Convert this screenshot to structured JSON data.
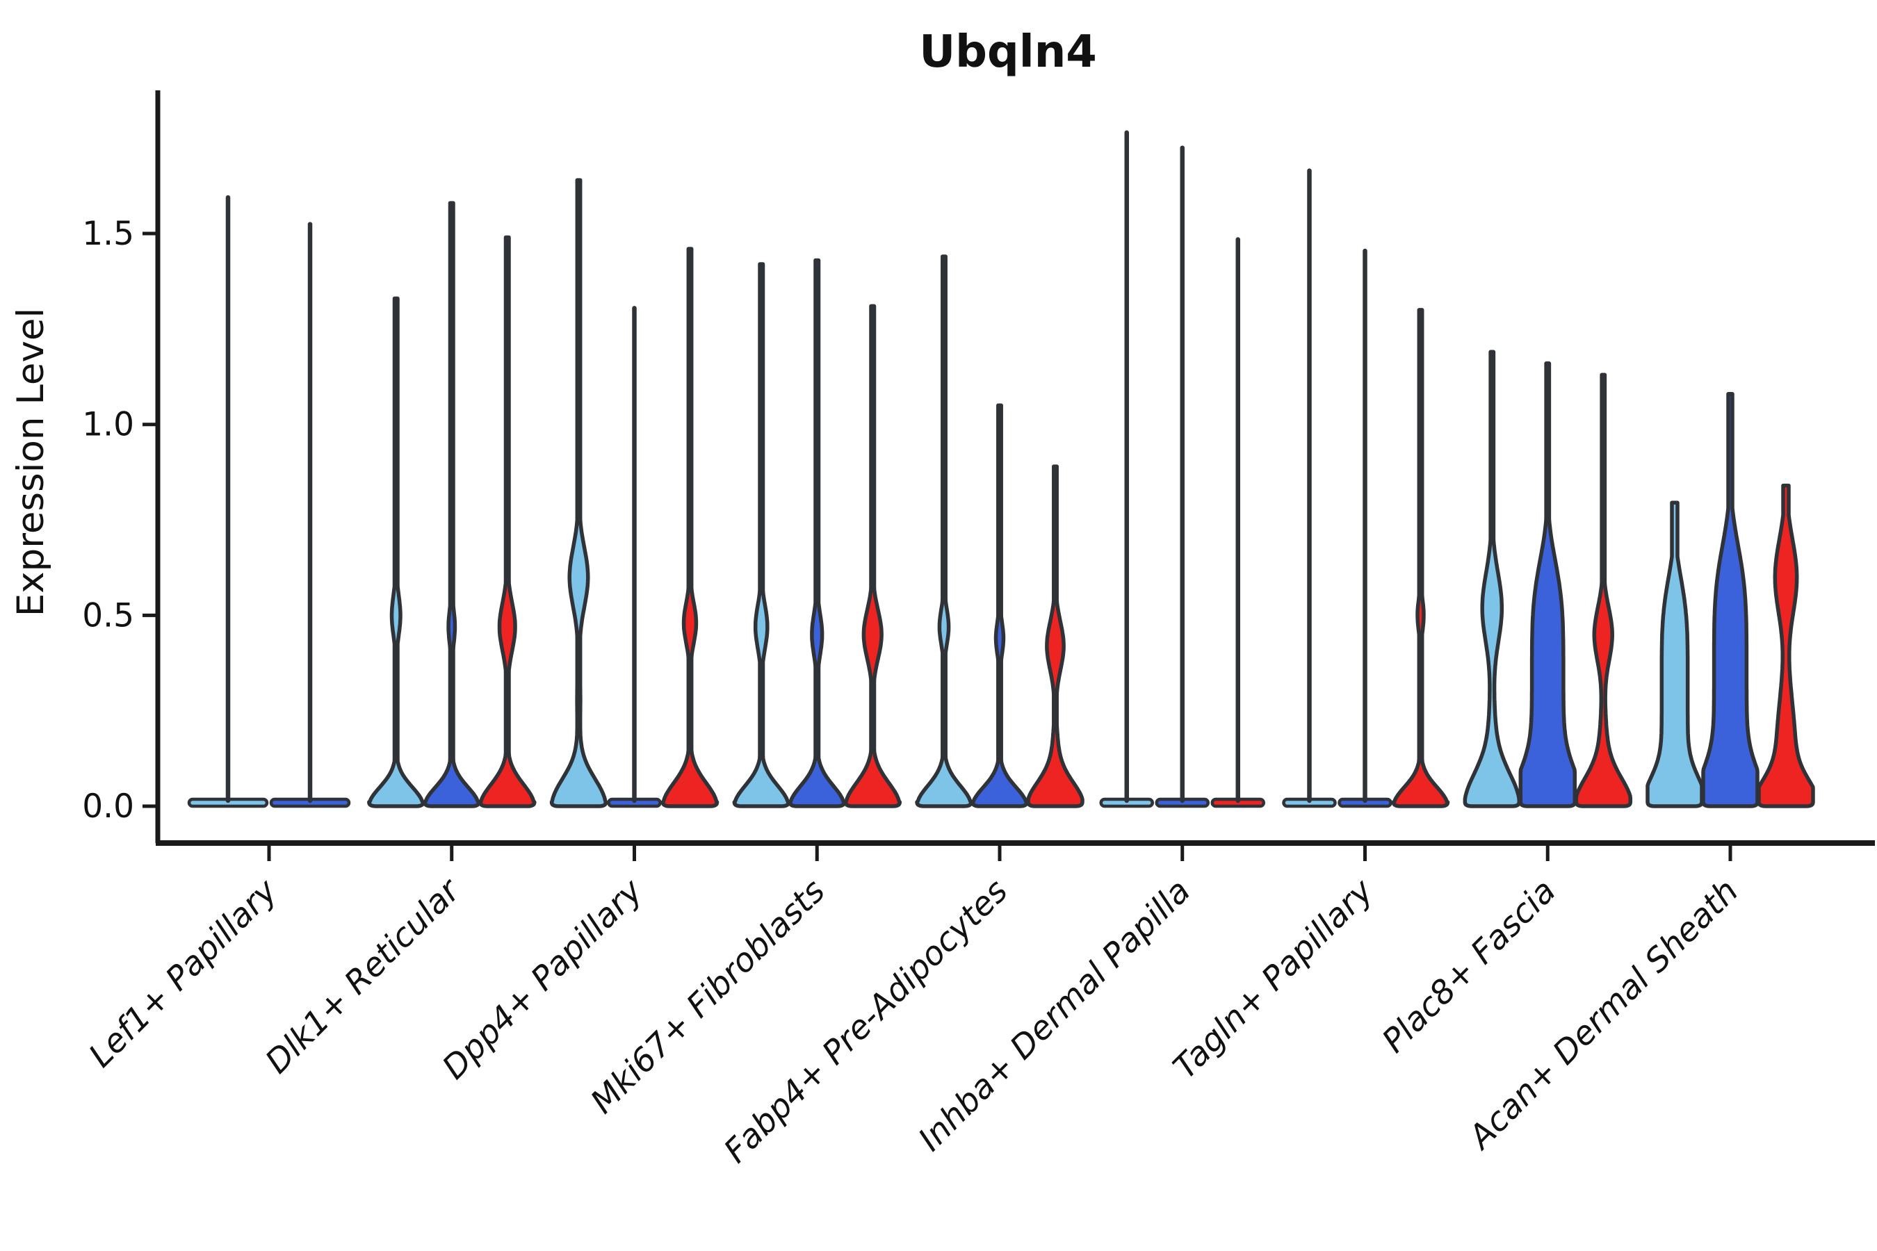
{
  "title": "Ubqln4",
  "y_axis": {
    "label": "Expression Level",
    "ticks": [
      {
        "value": 0.0,
        "label": "0.0"
      },
      {
        "value": 0.5,
        "label": "0.5"
      },
      {
        "value": 1.0,
        "label": "1.0"
      },
      {
        "value": 1.5,
        "label": "1.5"
      }
    ]
  },
  "x_axis": {
    "categories": [
      "Lef1+ Papillary",
      "Dlk1+ Reticular",
      "Dpp4+ Papillary",
      "Mki67+ Fibroblasts",
      "Fabp4+ Pre-Adipocytes",
      "Inhba+ Dermal Papilla",
      "Tagln+ Papillary",
      "Plac8+ Fascia",
      "Acan+ Dermal Sheath"
    ]
  },
  "colors": {
    "light_blue": "#7EC3E8",
    "dark_blue": "#3B62DB",
    "red": "#EE2423",
    "outline": "#2F3337",
    "axis": "#1A1A1A",
    "text": "#111111",
    "background": "#FFFFFF"
  },
  "chart_data": {
    "type": "violin",
    "title": "Ubqln4",
    "xlabel": "",
    "ylabel": "Expression Level",
    "ylim": [
      -0.05,
      1.9
    ],
    "grid": false,
    "legend": "none",
    "categories": [
      "Lef1+ Papillary",
      "Dlk1+ Reticular",
      "Dpp4+ Papillary",
      "Mki67+ Fibroblasts",
      "Fabp4+ Pre-Adipocytes",
      "Inhba+ Dermal Papilla",
      "Tagln+ Papillary",
      "Plac8+ Fascia",
      "Acan+ Dermal Sheath"
    ],
    "series_colors": {
      "light_blue": "#7EC3E8",
      "dark_blue": "#3B62DB",
      "red": "#EE2423"
    },
    "note": "Each group holds up to 3 violins (light_blue, dark_blue, red). kind 'line' = density collapsed at 0 with a thin spike to max. bulges entries are [center_value, sigma, halfwidth_fraction, exponent].",
    "groups": [
      {
        "category": "Lef1+ Papillary",
        "violins": [
          {
            "color": "light_blue",
            "kind": "line",
            "max": 1.6
          },
          {
            "color": "dark_blue",
            "kind": "line",
            "max": 1.53
          }
        ]
      },
      {
        "category": "Dlk1+ Reticular",
        "violins": [
          {
            "color": "light_blue",
            "kind": "violin",
            "max": 1.33,
            "base_s": 0.07,
            "bulges": [
              [
                0.5,
                0.075,
                0.16,
                2
              ]
            ]
          },
          {
            "color": "dark_blue",
            "kind": "violin",
            "max": 1.58,
            "base_s": 0.07,
            "bulges": [
              [
                0.47,
                0.065,
                0.12,
                2
              ]
            ]
          },
          {
            "color": "red",
            "kind": "violin",
            "max": 1.49,
            "base_s": 0.08,
            "bulges": [
              [
                0.47,
                0.09,
                0.29,
                2
              ]
            ]
          }
        ]
      },
      {
        "category": "Dpp4+ Papillary",
        "violins": [
          {
            "color": "light_blue",
            "kind": "violin",
            "max": 1.64,
            "base_s": 0.1,
            "bulges": [
              [
                0.6,
                0.11,
                0.34,
                2
              ],
              [
                0.28,
                0.12,
                0.06,
                2
              ]
            ]
          },
          {
            "color": "dark_blue",
            "kind": "line",
            "max": 1.31
          },
          {
            "color": "red",
            "kind": "violin",
            "max": 1.46,
            "base_s": 0.085,
            "bulges": [
              [
                0.48,
                0.075,
                0.23,
                2
              ]
            ]
          }
        ]
      },
      {
        "category": "Mki67+ Fibroblasts",
        "violins": [
          {
            "color": "light_blue",
            "kind": "violin",
            "max": 1.42,
            "base_s": 0.075,
            "bulges": [
              [
                0.47,
                0.08,
                0.22,
                2
              ]
            ]
          },
          {
            "color": "dark_blue",
            "kind": "violin",
            "max": 1.43,
            "base_s": 0.075,
            "bulges": [
              [
                0.45,
                0.075,
                0.19,
                2
              ]
            ]
          },
          {
            "color": "red",
            "kind": "violin",
            "max": 1.31,
            "base_s": 0.085,
            "bulges": [
              [
                0.45,
                0.09,
                0.33,
                2
              ]
            ]
          }
        ]
      },
      {
        "category": "Fabp4+ Pre-Adipocytes",
        "violins": [
          {
            "color": "light_blue",
            "kind": "violin",
            "max": 1.44,
            "base_s": 0.075,
            "bulges": [
              [
                0.47,
                0.065,
                0.17,
                2
              ]
            ]
          },
          {
            "color": "dark_blue",
            "kind": "violin",
            "max": 1.05,
            "base_s": 0.07,
            "bulges": [
              [
                0.44,
                0.06,
                0.14,
                2
              ]
            ]
          },
          {
            "color": "red",
            "kind": "violin",
            "max": 0.89,
            "base_s": 0.085,
            "bulges": [
              [
                0.42,
                0.09,
                0.31,
                2
              ],
              [
                0.12,
                0.12,
                0.1,
                2
              ]
            ]
          }
        ]
      },
      {
        "category": "Inhba+ Dermal Papilla",
        "violins": [
          {
            "color": "light_blue",
            "kind": "line",
            "max": 1.77
          },
          {
            "color": "dark_blue",
            "kind": "line",
            "max": 1.73
          },
          {
            "color": "red",
            "kind": "line",
            "max": 1.49
          }
        ]
      },
      {
        "category": "Tagln+ Papillary",
        "violins": [
          {
            "color": "light_blue",
            "kind": "line",
            "max": 1.67
          },
          {
            "color": "dark_blue",
            "kind": "line",
            "max": 1.46
          },
          {
            "color": "red",
            "kind": "violin",
            "max": 1.3,
            "base_s": 0.07,
            "bulges": [
              [
                0.5,
                0.06,
                0.115,
                2
              ]
            ]
          }
        ]
      },
      {
        "category": "Plac8+ Fascia",
        "violins": [
          {
            "color": "light_blue",
            "kind": "violin",
            "max": 1.19,
            "base_s": 0.12,
            "bulges": [
              [
                0.52,
                0.13,
                0.36,
                2
              ],
              [
                0.2,
                0.15,
                0.1,
                2
              ]
            ]
          },
          {
            "color": "dark_blue",
            "kind": "violin",
            "max": 1.16,
            "base_s": 0.12,
            "bulges": [
              [
                0.33,
                0.34,
                0.58,
                4
              ]
            ]
          },
          {
            "color": "red",
            "kind": "violin",
            "max": 1.13,
            "base_s": 0.1,
            "bulges": [
              [
                0.45,
                0.1,
                0.33,
                2
              ],
              [
                0.15,
                0.15,
                0.12,
                2
              ]
            ]
          }
        ]
      },
      {
        "category": "Acan+ Dermal Sheath",
        "violins": [
          {
            "color": "light_blue",
            "kind": "violin",
            "max": 0.795,
            "tip_hw": 4,
            "base_s": 0.1,
            "bulges": [
              [
                0.32,
                0.3,
                0.48,
                4
              ]
            ]
          },
          {
            "color": "dark_blue",
            "kind": "violin",
            "max": 1.08,
            "tip_hw": 3,
            "base_s": 0.12,
            "bulges": [
              [
                0.35,
                0.36,
                0.6,
                4
              ]
            ]
          },
          {
            "color": "red",
            "kind": "violin",
            "max": 0.84,
            "tip_hw": 4,
            "base_s": 0.09,
            "bulges": [
              [
                0.6,
                0.14,
                0.4,
                2
              ],
              [
                0.15,
                0.2,
                0.34,
                2
              ]
            ]
          }
        ]
      }
    ]
  }
}
